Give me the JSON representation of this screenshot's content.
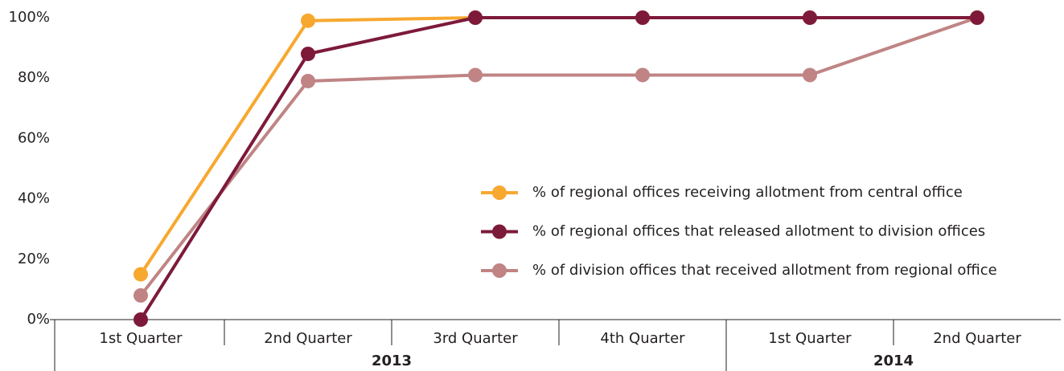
{
  "chart_data": {
    "type": "line",
    "categories": [
      "1st Quarter",
      "2nd Quarter",
      "3rd Quarter",
      "4th Quarter",
      "1st Quarter",
      "2nd Quarter"
    ],
    "groups": [
      {
        "name": "2013",
        "count": 4
      },
      {
        "name": "2014",
        "count": 2
      }
    ],
    "series": [
      {
        "name": "% of regional offices receiving allotment from central office",
        "color": "#f7a82f",
        "values": [
          15,
          99,
          100,
          100,
          100,
          100
        ]
      },
      {
        "name": "% of regional offices that released allotment to division offices",
        "color": "#7d1a3a",
        "values": [
          0,
          88,
          100,
          100,
          100,
          100
        ]
      },
      {
        "name": "% of division offices that received allotment from regional office",
        "color": "#c08484",
        "values": [
          8,
          79,
          81,
          81,
          81,
          100
        ]
      }
    ],
    "ylim": [
      0,
      100
    ],
    "yticks": [
      {
        "value": 0,
        "label": "0%"
      },
      {
        "value": 20,
        "label": "20%"
      },
      {
        "value": 40,
        "label": "40%"
      },
      {
        "value": 60,
        "label": "60%"
      },
      {
        "value": 80,
        "label": "80%"
      },
      {
        "value": 100,
        "label": "100%"
      }
    ],
    "grid": false
  }
}
